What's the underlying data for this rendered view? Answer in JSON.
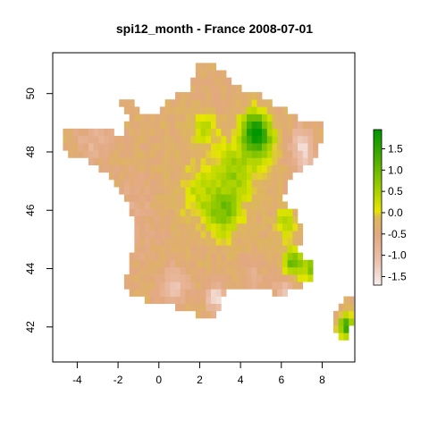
{
  "title": "spi12_month - France 2008-07-01",
  "chart_data": {
    "type": "heatmap",
    "title": "spi12_month - France 2008-07-01",
    "xlim": [
      -5.2,
      9.6
    ],
    "ylim": [
      40.8,
      51.4
    ],
    "x_ticks": [
      -4,
      -2,
      0,
      2,
      4,
      6,
      8
    ],
    "x_tick_labels": [
      "-4",
      "-2",
      "0",
      "2",
      "4",
      "6",
      "8"
    ],
    "y_ticks": [
      42,
      44,
      46,
      48,
      50
    ],
    "y_tick_labels": [
      "42",
      "44",
      "46",
      "48",
      "50"
    ],
    "colorbar": {
      "range": [
        -1.7,
        1.95
      ],
      "ticks": [
        1.5,
        1.0,
        0.5,
        0.0,
        -0.5,
        -1.0,
        -1.5
      ],
      "tick_labels": [
        "1.5",
        "1.0",
        "0.5",
        "0.0",
        "-0.5",
        "-1.0",
        "-1.5"
      ],
      "colors": [
        "#f7eeee",
        "#ebbfaa",
        "#e2a87f",
        "#dcb85a",
        "#e6e600",
        "#9ccd00",
        "#48ad00",
        "#009600"
      ],
      "stops": [
        -1.7,
        -1.1,
        -0.5,
        -0.1,
        0.05,
        0.6,
        1.3,
        1.95
      ]
    },
    "grid_resolution_deg": 0.25,
    "field_features": [
      {
        "lon": 4.6,
        "lat": 48.8,
        "value": 1.2,
        "spread": 0.6
      },
      {
        "lon": 5.0,
        "lat": 48.4,
        "value": 0.9,
        "spread": 0.7
      },
      {
        "lon": 2.2,
        "lat": 48.8,
        "value": 0.4,
        "spread": 0.6
      },
      {
        "lon": 3.8,
        "lat": 47.4,
        "value": 0.6,
        "spread": 1.0
      },
      {
        "lon": 3.2,
        "lat": 45.9,
        "value": 0.8,
        "spread": 0.8
      },
      {
        "lon": 2.0,
        "lat": 46.6,
        "value": 0.3,
        "spread": 0.9
      },
      {
        "lon": 6.6,
        "lat": 44.2,
        "value": 1.1,
        "spread": 0.5
      },
      {
        "lon": 7.6,
        "lat": 44.0,
        "value": 1.0,
        "spread": 0.4
      },
      {
        "lon": 6.2,
        "lat": 45.6,
        "value": 0.4,
        "spread": 0.5
      },
      {
        "lon": 9.2,
        "lat": 42.0,
        "value": 1.4,
        "spread": 0.4
      },
      {
        "lon": 7.0,
        "lat": 48.3,
        "value": -1.4,
        "spread": 0.5
      },
      {
        "lon": 7.2,
        "lat": 47.6,
        "value": -0.9,
        "spread": 0.5
      },
      {
        "lon": -3.2,
        "lat": 48.3,
        "value": -0.8,
        "spread": 0.8
      },
      {
        "lon": -1.2,
        "lat": 46.4,
        "value": -0.6,
        "spread": 0.9
      },
      {
        "lon": -0.6,
        "lat": 44.6,
        "value": -0.5,
        "spread": 0.9
      },
      {
        "lon": 0.8,
        "lat": 43.4,
        "value": -1.2,
        "spread": 0.6
      },
      {
        "lon": 2.8,
        "lat": 43.0,
        "value": -1.6,
        "spread": 0.45
      },
      {
        "lon": 6.2,
        "lat": 43.3,
        "value": -1.1,
        "spread": 0.5
      },
      {
        "lon": 4.6,
        "lat": 43.8,
        "value": -0.7,
        "spread": 0.5
      },
      {
        "lon": 5.8,
        "lat": 46.6,
        "value": -0.3,
        "spread": 0.5
      },
      {
        "lon": 2.8,
        "lat": 50.4,
        "value": -0.4,
        "spread": 0.5
      },
      {
        "lon": 0.2,
        "lat": 49.3,
        "value": -0.3,
        "spread": 0.5
      }
    ],
    "base_value": -0.35,
    "france_outline": [
      [
        -4.75,
        48.65
      ],
      [
        -4.0,
        48.8
      ],
      [
        -3.0,
        48.85
      ],
      [
        -2.0,
        48.65
      ],
      [
        -1.6,
        48.7
      ],
      [
        -1.55,
        49.25
      ],
      [
        -1.85,
        49.7
      ],
      [
        -1.2,
        49.7
      ],
      [
        -0.8,
        49.35
      ],
      [
        0.2,
        49.45
      ],
      [
        0.3,
        49.75
      ],
      [
        1.4,
        50.1
      ],
      [
        1.6,
        50.45
      ],
      [
        1.8,
        50.95
      ],
      [
        2.55,
        51.1
      ],
      [
        3.1,
        50.8
      ],
      [
        3.7,
        50.4
      ],
      [
        4.3,
        50.1
      ],
      [
        4.8,
        50.15
      ],
      [
        5.2,
        49.75
      ],
      [
        6.1,
        49.55
      ],
      [
        6.6,
        49.2
      ],
      [
        7.5,
        49.1
      ],
      [
        8.2,
        49.0
      ],
      [
        8.0,
        48.6
      ],
      [
        7.6,
        47.6
      ],
      [
        7.0,
        47.45
      ],
      [
        6.4,
        46.95
      ],
      [
        6.0,
        46.35
      ],
      [
        6.7,
        45.95
      ],
      [
        7.0,
        45.3
      ],
      [
        6.9,
        44.55
      ],
      [
        7.6,
        44.15
      ],
      [
        7.6,
        43.75
      ],
      [
        6.8,
        43.35
      ],
      [
        6.1,
        43.05
      ],
      [
        5.3,
        43.2
      ],
      [
        4.5,
        43.4
      ],
      [
        3.7,
        43.35
      ],
      [
        3.1,
        43.0
      ],
      [
        3.0,
        42.45
      ],
      [
        2.2,
        42.35
      ],
      [
        1.4,
        42.55
      ],
      [
        0.6,
        42.7
      ],
      [
        -0.5,
        42.85
      ],
      [
        -1.3,
        43.15
      ],
      [
        -1.8,
        43.4
      ],
      [
        -1.4,
        44.2
      ],
      [
        -1.2,
        45.2
      ],
      [
        -1.4,
        46.1
      ],
      [
        -2.1,
        46.8
      ],
      [
        -2.6,
        47.3
      ],
      [
        -3.4,
        47.7
      ],
      [
        -4.4,
        47.9
      ],
      [
        -4.75,
        48.3
      ]
    ],
    "corsica_outline": [
      [
        9.1,
        42.98
      ],
      [
        9.45,
        43.0
      ],
      [
        9.55,
        42.6
      ],
      [
        9.5,
        42.1
      ],
      [
        9.3,
        41.65
      ],
      [
        9.1,
        41.4
      ],
      [
        8.75,
        41.6
      ],
      [
        8.6,
        42.0
      ],
      [
        8.55,
        42.4
      ],
      [
        8.75,
        42.6
      ]
    ]
  }
}
